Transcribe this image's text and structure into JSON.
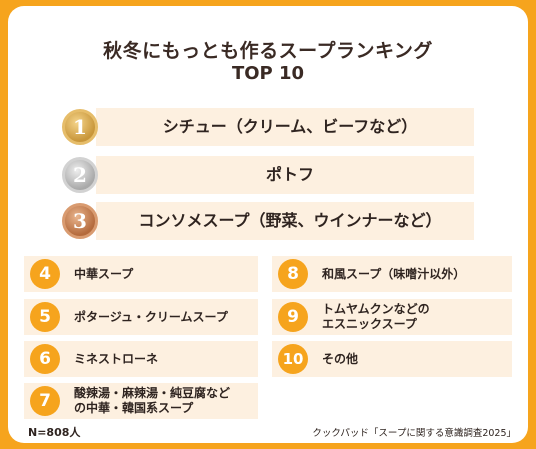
{
  "chart_data": {
    "type": "table",
    "title": "秋冬にもっとも作るスープランキング",
    "subtitle": "TOP 10",
    "rankings": [
      {
        "rank": "1",
        "label": "シチュー（クリーム、ビーフなど）"
      },
      {
        "rank": "2",
        "label": "ポトフ"
      },
      {
        "rank": "3",
        "label": "コンソメスープ（野菜、ウインナーなど）"
      },
      {
        "rank": "4",
        "label": "中華スープ"
      },
      {
        "rank": "5",
        "label": "ポタージュ・クリームスープ"
      },
      {
        "rank": "6",
        "label": "ミネストローネ"
      },
      {
        "rank": "7",
        "label": "酸辣湯・麻辣湯・純豆腐など\nの中華・韓国系スープ"
      },
      {
        "rank": "8",
        "label": "和風スープ（味噌汁以外）"
      },
      {
        "rank": "9",
        "label": "トムヤムクンなどの\nエスニックスープ"
      },
      {
        "rank": "10",
        "label": "その他"
      }
    ],
    "sample": "N=808人",
    "source": "クックパッド「スープに関する意識調査2025」"
  },
  "colors": {
    "frame": "#f6a41d",
    "row_bg": "#fdf0e0",
    "rank_circle": "#f6a41d",
    "gold": "#d4a24a",
    "silver": "#b8b8b8",
    "bronze": "#c4794a"
  }
}
